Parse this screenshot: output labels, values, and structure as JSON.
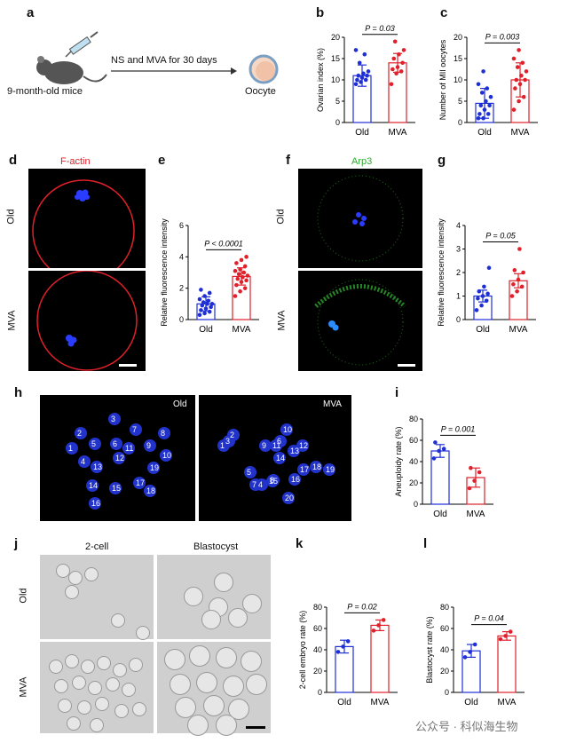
{
  "panel_letters": [
    "a",
    "b",
    "c",
    "d",
    "e",
    "f",
    "g",
    "h",
    "i",
    "j",
    "k",
    "l"
  ],
  "schematic": {
    "treatment": "NS and MVA for 30 days",
    "mice": "9-month-old mice",
    "oocyte": "Oocyte"
  },
  "image_labels": {
    "factin": "F-actin",
    "arp3": "Arp3",
    "old": "Old",
    "mva": "MVA",
    "two_cell": "2-cell",
    "blastocyst": "Blastocyst"
  },
  "chromosomes": {
    "old": [
      "1",
      "2",
      "3",
      "4",
      "5",
      "6",
      "7",
      "8",
      "9",
      "10",
      "11",
      "12",
      "13",
      "14",
      "15",
      "16",
      "17",
      "18",
      "19"
    ],
    "mva": [
      "1",
      "2",
      "3",
      "4",
      "5",
      "6",
      "7",
      "8",
      "9",
      "10",
      "11",
      "12",
      "13",
      "14",
      "15",
      "16",
      "17",
      "18",
      "19",
      "20"
    ]
  },
  "colors": {
    "old": "#1f2fd6",
    "mva": "#e0202a"
  },
  "chart_data": [
    {
      "id": "b",
      "type": "bar",
      "ylabel": "Ovarian index (%)",
      "categories": [
        "Old",
        "MVA"
      ],
      "values": [
        11,
        14
      ],
      "errors": [
        2.5,
        2.2
      ],
      "ylim": [
        0,
        20
      ],
      "yticks": [
        0,
        5,
        10,
        15,
        20
      ],
      "pvalue": "P = 0.03",
      "points": [
        [
          9,
          9.5,
          10,
          10,
          10.5,
          11,
          11,
          11.5,
          12,
          14,
          16,
          17
        ],
        [
          9,
          11.5,
          12,
          12.5,
          13,
          14,
          15,
          16,
          17,
          19
        ]
      ]
    },
    {
      "id": "c",
      "type": "bar",
      "ylabel": "Number of MII oocytes",
      "categories": [
        "Old",
        "MVA"
      ],
      "values": [
        4.5,
        10
      ],
      "errors": [
        3.5,
        4
      ],
      "ylim": [
        0,
        20
      ],
      "yticks": [
        0,
        5,
        10,
        15,
        20
      ],
      "pvalue": "P = 0.003",
      "points": [
        [
          1,
          1,
          2,
          2,
          3,
          4,
          4,
          5,
          6,
          7,
          8,
          9,
          12
        ],
        [
          3,
          5,
          6,
          8,
          9,
          10,
          10,
          11,
          12,
          13,
          14,
          15,
          17
        ]
      ]
    },
    {
      "id": "e",
      "type": "bar",
      "ylabel": "Relative fluorescence intensity",
      "categories": [
        "Old",
        "MVA"
      ],
      "values": [
        1,
        2.75
      ],
      "errors": [
        0.45,
        0.55
      ],
      "ylim": [
        0,
        6
      ],
      "yticks": [
        0,
        2,
        4,
        6
      ],
      "pvalue": "P < 0.0001",
      "points": [
        [
          0.3,
          0.4,
          0.5,
          0.6,
          0.7,
          0.8,
          0.9,
          1.0,
          1.0,
          1.1,
          1.2,
          1.3,
          1.5,
          1.7,
          1.9
        ],
        [
          1.5,
          1.8,
          2.0,
          2.2,
          2.4,
          2.5,
          2.6,
          2.7,
          2.8,
          2.9,
          3.0,
          3.1,
          3.2,
          3.4,
          3.6,
          3.8,
          4.0
        ]
      ]
    },
    {
      "id": "g",
      "type": "bar",
      "ylabel": "Relative fluorescence intensity",
      "categories": [
        "Old",
        "MVA"
      ],
      "values": [
        1,
        1.65
      ],
      "errors": [
        0.25,
        0.3
      ],
      "ylim": [
        0,
        4
      ],
      "yticks": [
        0,
        1,
        2,
        3,
        4
      ],
      "pvalue": "P = 0.05",
      "points": [
        [
          0.4,
          0.6,
          0.8,
          0.9,
          1.0,
          1.1,
          1.2,
          1.4,
          2.2
        ],
        [
          1.0,
          1.2,
          1.4,
          1.5,
          1.7,
          2.0,
          2.1,
          3.0
        ]
      ]
    },
    {
      "id": "i",
      "type": "bar",
      "ylabel": "Aneuploidy rate (%)",
      "categories": [
        "Old",
        "MVA"
      ],
      "values": [
        50,
        25
      ],
      "errors": [
        6,
        9
      ],
      "ylim": [
        0,
        80
      ],
      "yticks": [
        0,
        20,
        40,
        60,
        80
      ],
      "pvalue": "P = 0.001",
      "points": [
        [
          43,
          50,
          52,
          58
        ],
        [
          15,
          22,
          30,
          34
        ]
      ]
    },
    {
      "id": "k",
      "type": "bar",
      "ylabel": "2-cell embryo rate (%)",
      "categories": [
        "Old",
        "MVA"
      ],
      "values": [
        43,
        63
      ],
      "errors": [
        6,
        5
      ],
      "ylim": [
        0,
        80
      ],
      "yticks": [
        0,
        20,
        40,
        60,
        80
      ],
      "pvalue": "P = 0.02",
      "points": [
        [
          38,
          43,
          48
        ],
        [
          58,
          63,
          68
        ]
      ]
    },
    {
      "id": "l",
      "type": "bar",
      "ylabel": "Blastocyst rate (%)",
      "categories": [
        "Old",
        "MVA"
      ],
      "values": [
        39,
        53
      ],
      "errors": [
        6,
        4
      ],
      "ylim": [
        0,
        80
      ],
      "yticks": [
        0,
        20,
        40,
        60,
        80
      ],
      "pvalue": "P = 0.04",
      "points": [
        [
          33,
          38,
          45
        ],
        [
          50,
          53,
          57
        ]
      ]
    }
  ],
  "watermark": "公众号 · 科似海生物"
}
